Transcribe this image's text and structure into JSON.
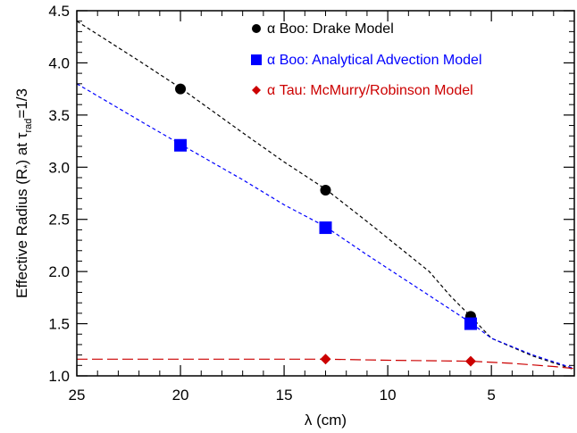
{
  "chart_data": {
    "type": "line",
    "title": "",
    "xlabel": {
      "symbol": "λ",
      "rest": " (cm)"
    },
    "ylabel": {
      "main": "Effective Radius (R",
      "star_sub": "*",
      "mid": ") at ",
      "tau": "τ",
      "tau_sub": "rad",
      "tail": "=1/3"
    },
    "xlim": [
      25,
      1
    ],
    "ylim": [
      1.0,
      4.5
    ],
    "x_reversed": true,
    "xticks": [
      25,
      20,
      15,
      10,
      5
    ],
    "xtick_labels": [
      "25",
      "20",
      "15",
      "10",
      "5"
    ],
    "yticks": [
      1.0,
      1.5,
      2.0,
      2.5,
      3.0,
      3.5,
      4.0,
      4.5
    ],
    "ytick_labels": [
      "1.0",
      "1.5",
      "2.0",
      "2.5",
      "3.0",
      "3.5",
      "4.0",
      "4.5"
    ],
    "grid": false,
    "legend_position": "top-right",
    "series": [
      {
        "name": "α Boo: Drake Model",
        "color": "#000000",
        "marker": "circle",
        "line_style": "short-dash",
        "points": [
          {
            "x": 20,
            "y": 3.75
          },
          {
            "x": 13,
            "y": 2.78
          },
          {
            "x": 6,
            "y": 1.57
          }
        ],
        "curve": [
          [
            25,
            4.4
          ],
          [
            22,
            4.02
          ],
          [
            20,
            3.76
          ],
          [
            17,
            3.33
          ],
          [
            15,
            3.05
          ],
          [
            13,
            2.79
          ],
          [
            11,
            2.48
          ],
          [
            9,
            2.16
          ],
          [
            8,
            2.0
          ],
          [
            7,
            1.77
          ],
          [
            6,
            1.57
          ],
          [
            5,
            1.36
          ],
          [
            3,
            1.19
          ],
          [
            1,
            1.06
          ]
        ]
      },
      {
        "name": "α Boo: Analytical Advection Model",
        "color": "#0000ff",
        "marker": "square",
        "line_style": "short-dash",
        "points": [
          {
            "x": 20,
            "y": 3.21
          },
          {
            "x": 13,
            "y": 2.42
          },
          {
            "x": 6,
            "y": 1.5
          }
        ],
        "curve": [
          [
            25,
            3.8
          ],
          [
            22,
            3.45
          ],
          [
            20,
            3.22
          ],
          [
            17,
            2.88
          ],
          [
            15,
            2.64
          ],
          [
            13,
            2.43
          ],
          [
            11,
            2.16
          ],
          [
            9,
            1.9
          ],
          [
            7,
            1.64
          ],
          [
            6,
            1.51
          ],
          [
            5,
            1.36
          ],
          [
            3,
            1.2
          ],
          [
            1,
            1.07
          ]
        ]
      },
      {
        "name": "α Tau: McMurry/Robinson Model",
        "color": "#cc0000",
        "marker": "diamond",
        "line_style": "long-dash",
        "points": [
          {
            "x": 13,
            "y": 1.16
          },
          {
            "x": 6,
            "y": 1.14
          }
        ],
        "curve": [
          [
            25,
            1.16
          ],
          [
            20,
            1.16
          ],
          [
            15,
            1.16
          ],
          [
            13,
            1.16
          ],
          [
            10,
            1.15
          ],
          [
            6,
            1.14
          ],
          [
            4,
            1.12
          ],
          [
            2,
            1.09
          ],
          [
            1,
            1.07
          ]
        ]
      }
    ]
  }
}
